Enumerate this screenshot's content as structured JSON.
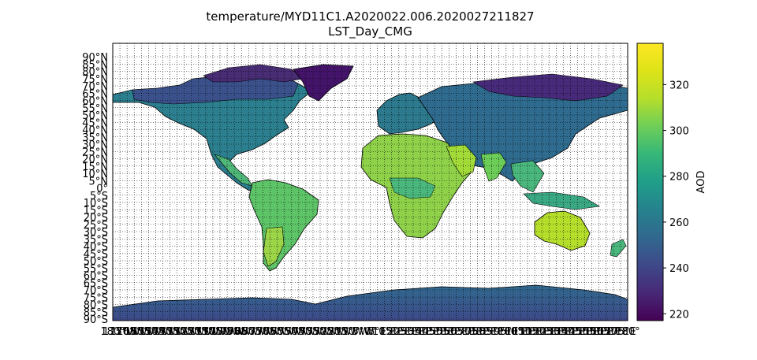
{
  "title": {
    "line1": "temperature/MYD11C1.A2020022.006.2020027211827",
    "line2": "LST_Day_CMG"
  },
  "map": {
    "projection": "PlateCarree",
    "lat_range": [
      -90,
      90
    ],
    "lon_range": [
      -180,
      180
    ],
    "gridlines": "dotted, every 5°",
    "land_coloring": "viridis by temperature; ocean left blank (white)",
    "lat_labels": [
      "90°N",
      "85°N",
      "80°N",
      "75°N",
      "70°N",
      "65°N",
      "60°N",
      "55°N",
      "50°N",
      "45°N",
      "40°N",
      "35°N",
      "30°N",
      "25°N",
      "20°N",
      "15°N",
      "10°N",
      "5°N",
      "0°",
      "5°S",
      "10°S",
      "15°S",
      "20°S",
      "25°S",
      "30°S",
      "35°S",
      "40°S",
      "45°S",
      "50°S",
      "55°S",
      "60°S",
      "65°S",
      "70°S",
      "75°S",
      "80°S",
      "85°S",
      "90°S"
    ],
    "lon_labels_note": "overlapping 5° longitude labels along the bottom from 180° to 180°E"
  },
  "colorbar": {
    "label": "AOD",
    "colormap": "viridis",
    "vmin": 217,
    "vmax": 338,
    "ticks": [
      220,
      240,
      260,
      280,
      300,
      320
    ]
  },
  "colors": {
    "low": "#440154",
    "mid": "#21918c",
    "high": "#fde725",
    "ocean": "#ffffff"
  }
}
